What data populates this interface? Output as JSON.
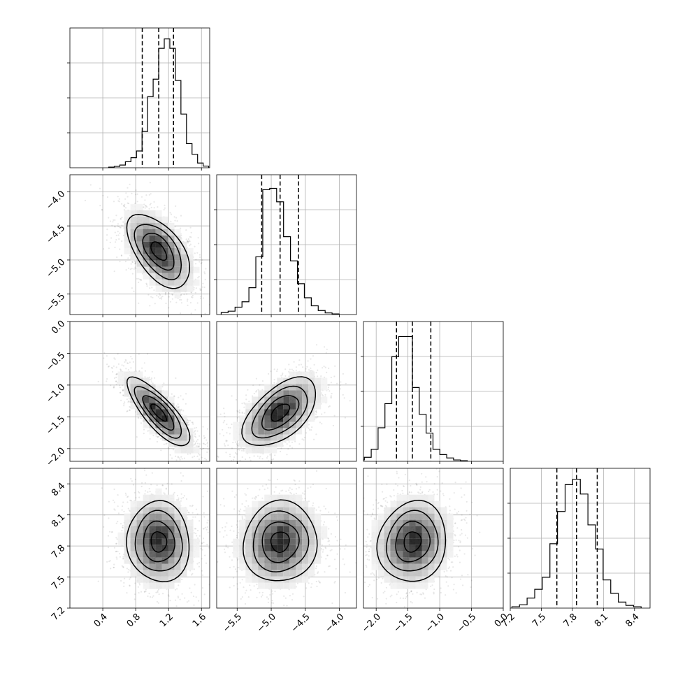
{
  "chart_data": {
    "type": "corner",
    "parameters": [
      {
        "range": [
          0.0,
          1.7
        ],
        "ticks": [
          0.4,
          0.8,
          1.2,
          1.6
        ],
        "tick_labels": [
          "0.4",
          "0.8",
          "1.2",
          "1.6"
        ],
        "quantiles": [
          0.88,
          1.08,
          1.26
        ],
        "hist_values": [
          0.5,
          1.0,
          2.0,
          4.5,
          7.5,
          12.5,
          27.0,
          53.0,
          66.0,
          89.0,
          96.0,
          89.0,
          65.0,
          40.0,
          18.0,
          10.0,
          3.5,
          1.2
        ],
        "hist_max": 100
      },
      {
        "range": [
          -5.8,
          -3.75
        ],
        "ticks": [
          -5.5,
          -5.0,
          -4.5,
          -4.0
        ],
        "tick_labels": [
          "−5.5",
          "−5.0",
          "−4.5",
          "−4.0"
        ],
        "quantiles": [
          -5.14,
          -4.87,
          -4.6
        ],
        "hist_values": [
          1.5,
          2.5,
          5.5,
          9.5,
          20.0,
          43.0,
          93.0,
          94.0,
          84.0,
          58.0,
          40.0,
          23.0,
          12.5,
          6.5,
          3.0,
          1.2,
          0.5
        ],
        "hist_max": 100
      },
      {
        "range": [
          -2.2,
          0.0
        ],
        "ticks": [
          -2.0,
          -1.5,
          -1.0,
          -0.5,
          0.0
        ],
        "tick_labels": [
          "−2.0",
          "−1.5",
          "−1.0",
          "−0.5",
          "0.0"
        ],
        "quantiles": [
          -1.68,
          -1.43,
          -1.14
        ],
        "hist_values": [
          1.0,
          3.0,
          9.0,
          25.0,
          43.0,
          78.0,
          93.0,
          93.0,
          55.0,
          35.0,
          21.0,
          9.0,
          5.0,
          2.5,
          1.0,
          0.5
        ],
        "hist_max": 100
      },
      {
        "range": [
          7.2,
          8.55
        ],
        "ticks": [
          7.2,
          7.5,
          7.8,
          8.1,
          8.4
        ],
        "tick_labels": [
          "7.2",
          "7.5",
          "7.8",
          "8.1",
          "8.4"
        ],
        "quantiles": [
          7.65,
          7.84,
          8.04
        ],
        "hist_values": [
          1.0,
          2.5,
          7.5,
          14.0,
          23.0,
          48.0,
          72.0,
          92.0,
          96.0,
          85.0,
          62.0,
          44.0,
          21.0,
          11.0,
          4.5,
          2.0,
          1.0
        ],
        "hist_max": 100
      }
    ],
    "joint_correlation": {
      "1-0": -0.55,
      "2-0": -0.8,
      "2-1": 0.55,
      "3-0": -0.05,
      "3-1": 0.05,
      "3-2": 0.1
    },
    "diagonal_ytick_fractions": [
      0.25,
      0.5,
      0.75
    ],
    "grid": true,
    "colors": {
      "points": "#000000",
      "frame": "#000000",
      "grid": "#b0b0b0"
    }
  }
}
